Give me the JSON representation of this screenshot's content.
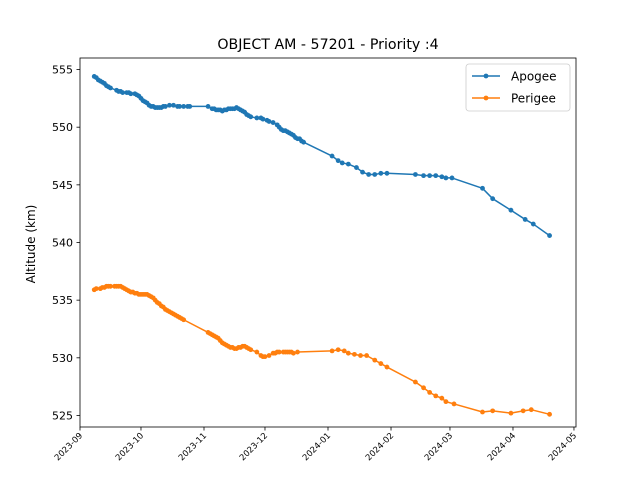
{
  "chart_data": {
    "type": "line",
    "title": "OBJECT AM - 57201 - Priority :4",
    "xlabel": "",
    "ylabel": "Altitude (km)",
    "xlim": [
      "2023-09-01",
      "2024-05-02"
    ],
    "ylim": [
      524.0,
      556.0
    ],
    "x_ticks": [
      "2023-09",
      "2023-10",
      "2023-11",
      "2023-12",
      "2024-01",
      "2024-02",
      "2024-03",
      "2024-04",
      "2024-05"
    ],
    "y_ticks": [
      525,
      530,
      535,
      540,
      545,
      550,
      555
    ],
    "grid": false,
    "legend_position": "top-right",
    "series": [
      {
        "name": "Apogee",
        "color": "#1f77b4",
        "points": [
          [
            "2023-09-08",
            554.4
          ],
          [
            "2023-09-09",
            554.3
          ],
          [
            "2023-09-10",
            554.1
          ],
          [
            "2023-09-11",
            554.0
          ],
          [
            "2023-09-12",
            553.9
          ],
          [
            "2023-09-13",
            553.8
          ],
          [
            "2023-09-14",
            553.6
          ],
          [
            "2023-09-15",
            553.5
          ],
          [
            "2023-09-16",
            553.4
          ],
          [
            "2023-09-19",
            553.2
          ],
          [
            "2023-09-20",
            553.1
          ],
          [
            "2023-09-21",
            553.1
          ],
          [
            "2023-09-22",
            553.0
          ],
          [
            "2023-09-24",
            553.0
          ],
          [
            "2023-09-25",
            553.0
          ],
          [
            "2023-09-26",
            552.9
          ],
          [
            "2023-09-28",
            552.9
          ],
          [
            "2023-09-29",
            552.8
          ],
          [
            "2023-09-30",
            552.7
          ],
          [
            "2023-10-01",
            552.5
          ],
          [
            "2023-10-02",
            552.3
          ],
          [
            "2023-10-03",
            552.2
          ],
          [
            "2023-10-04",
            552.1
          ],
          [
            "2023-10-05",
            551.9
          ],
          [
            "2023-10-06",
            551.8
          ],
          [
            "2023-10-07",
            551.8
          ],
          [
            "2023-10-08",
            551.7
          ],
          [
            "2023-10-09",
            551.7
          ],
          [
            "2023-10-10",
            551.7
          ],
          [
            "2023-10-11",
            551.7
          ],
          [
            "2023-10-12",
            551.8
          ],
          [
            "2023-10-13",
            551.8
          ],
          [
            "2023-10-15",
            551.9
          ],
          [
            "2023-10-17",
            551.9
          ],
          [
            "2023-10-19",
            551.8
          ],
          [
            "2023-10-20",
            551.8
          ],
          [
            "2023-10-22",
            551.8
          ],
          [
            "2023-10-24",
            551.8
          ],
          [
            "2023-10-25",
            551.8
          ],
          [
            "2023-11-03",
            551.8
          ],
          [
            "2023-11-05",
            551.6
          ],
          [
            "2023-11-06",
            551.6
          ],
          [
            "2023-11-07",
            551.5
          ],
          [
            "2023-11-08",
            551.5
          ],
          [
            "2023-11-09",
            551.5
          ],
          [
            "2023-11-10",
            551.4
          ],
          [
            "2023-11-11",
            551.5
          ],
          [
            "2023-11-12",
            551.5
          ],
          [
            "2023-11-13",
            551.6
          ],
          [
            "2023-11-14",
            551.6
          ],
          [
            "2023-11-15",
            551.6
          ],
          [
            "2023-11-16",
            551.6
          ],
          [
            "2023-11-17",
            551.7
          ],
          [
            "2023-11-18",
            551.6
          ],
          [
            "2023-11-19",
            551.5
          ],
          [
            "2023-11-20",
            551.4
          ],
          [
            "2023-11-21",
            551.3
          ],
          [
            "2023-11-22",
            551.1
          ],
          [
            "2023-11-23",
            551.0
          ],
          [
            "2023-11-24",
            550.9
          ],
          [
            "2023-11-27",
            550.8
          ],
          [
            "2023-11-29",
            550.8
          ],
          [
            "2023-11-30",
            550.7
          ],
          [
            "2023-12-02",
            550.6
          ],
          [
            "2023-12-03",
            550.5
          ],
          [
            "2023-12-05",
            550.4
          ],
          [
            "2023-12-07",
            550.2
          ],
          [
            "2023-12-08",
            550.0
          ],
          [
            "2023-12-09",
            549.8
          ],
          [
            "2023-12-10",
            549.7
          ],
          [
            "2023-12-11",
            549.7
          ],
          [
            "2023-12-12",
            549.6
          ],
          [
            "2023-12-13",
            549.5
          ],
          [
            "2023-12-14",
            549.4
          ],
          [
            "2023-12-15",
            549.3
          ],
          [
            "2023-12-16",
            549.1
          ],
          [
            "2023-12-17",
            549.0
          ],
          [
            "2023-12-18",
            549.0
          ],
          [
            "2023-12-19",
            548.8
          ],
          [
            "2023-12-20",
            548.7
          ],
          [
            "2024-01-03",
            547.5
          ],
          [
            "2024-01-06",
            547.1
          ],
          [
            "2024-01-08",
            546.9
          ],
          [
            "2024-01-11",
            546.8
          ],
          [
            "2024-01-15",
            546.5
          ],
          [
            "2024-01-18",
            546.1
          ],
          [
            "2024-01-21",
            545.9
          ],
          [
            "2024-01-24",
            545.9
          ],
          [
            "2024-01-27",
            546.0
          ],
          [
            "2024-01-30",
            546.0
          ],
          [
            "2024-02-13",
            545.9
          ],
          [
            "2024-02-17",
            545.8
          ],
          [
            "2024-02-20",
            545.8
          ],
          [
            "2024-02-23",
            545.8
          ],
          [
            "2024-02-26",
            545.7
          ],
          [
            "2024-02-28",
            545.6
          ],
          [
            "2024-03-02",
            545.6
          ],
          [
            "2024-03-17",
            544.7
          ],
          [
            "2024-03-22",
            543.8
          ],
          [
            "2024-03-31",
            542.8
          ],
          [
            "2024-04-07",
            542.0
          ],
          [
            "2024-04-11",
            541.6
          ],
          [
            "2024-04-19",
            540.6
          ]
        ]
      },
      {
        "name": "Perigee",
        "color": "#ff7f0e",
        "points": [
          [
            "2023-09-08",
            535.9
          ],
          [
            "2023-09-09",
            536.0
          ],
          [
            "2023-09-11",
            536.0
          ],
          [
            "2023-09-12",
            536.1
          ],
          [
            "2023-09-13",
            536.1
          ],
          [
            "2023-09-14",
            536.2
          ],
          [
            "2023-09-15",
            536.2
          ],
          [
            "2023-09-16",
            536.2
          ],
          [
            "2023-09-18",
            536.2
          ],
          [
            "2023-09-19",
            536.2
          ],
          [
            "2023-09-20",
            536.2
          ],
          [
            "2023-09-21",
            536.2
          ],
          [
            "2023-09-22",
            536.1
          ],
          [
            "2023-09-23",
            536.0
          ],
          [
            "2023-09-24",
            535.9
          ],
          [
            "2023-09-25",
            535.8
          ],
          [
            "2023-09-26",
            535.7
          ],
          [
            "2023-09-27",
            535.7
          ],
          [
            "2023-09-28",
            535.6
          ],
          [
            "2023-09-29",
            535.6
          ],
          [
            "2023-09-30",
            535.5
          ],
          [
            "2023-10-01",
            535.5
          ],
          [
            "2023-10-02",
            535.5
          ],
          [
            "2023-10-03",
            535.5
          ],
          [
            "2023-10-04",
            535.5
          ],
          [
            "2023-10-05",
            535.4
          ],
          [
            "2023-10-06",
            535.3
          ],
          [
            "2023-10-07",
            535.2
          ],
          [
            "2023-10-08",
            535.0
          ],
          [
            "2023-10-09",
            534.8
          ],
          [
            "2023-10-10",
            534.7
          ],
          [
            "2023-10-11",
            534.5
          ],
          [
            "2023-10-12",
            534.4
          ],
          [
            "2023-10-13",
            534.2
          ],
          [
            "2023-10-14",
            534.1
          ],
          [
            "2023-10-15",
            534.0
          ],
          [
            "2023-10-16",
            533.9
          ],
          [
            "2023-10-17",
            533.8
          ],
          [
            "2023-10-18",
            533.7
          ],
          [
            "2023-10-19",
            533.6
          ],
          [
            "2023-10-20",
            533.5
          ],
          [
            "2023-10-21",
            533.4
          ],
          [
            "2023-10-22",
            533.3
          ],
          [
            "2023-11-03",
            532.2
          ],
          [
            "2023-11-04",
            532.1
          ],
          [
            "2023-11-05",
            532.0
          ],
          [
            "2023-11-06",
            531.9
          ],
          [
            "2023-11-07",
            531.8
          ],
          [
            "2023-11-08",
            531.7
          ],
          [
            "2023-11-09",
            531.5
          ],
          [
            "2023-11-10",
            531.3
          ],
          [
            "2023-11-11",
            531.2
          ],
          [
            "2023-11-12",
            531.1
          ],
          [
            "2023-11-13",
            531.0
          ],
          [
            "2023-11-14",
            530.9
          ],
          [
            "2023-11-15",
            530.9
          ],
          [
            "2023-11-16",
            530.8
          ],
          [
            "2023-11-17",
            530.8
          ],
          [
            "2023-11-18",
            530.9
          ],
          [
            "2023-11-19",
            530.9
          ],
          [
            "2023-11-20",
            531.0
          ],
          [
            "2023-11-21",
            531.0
          ],
          [
            "2023-11-22",
            530.9
          ],
          [
            "2023-11-23",
            530.8
          ],
          [
            "2023-11-24",
            530.7
          ],
          [
            "2023-11-27",
            530.5
          ],
          [
            "2023-11-29",
            530.2
          ],
          [
            "2023-11-30",
            530.1
          ],
          [
            "2023-12-01",
            530.1
          ],
          [
            "2023-12-03",
            530.2
          ],
          [
            "2023-12-05",
            530.4
          ],
          [
            "2023-12-06",
            530.4
          ],
          [
            "2023-12-07",
            530.5
          ],
          [
            "2023-12-08",
            530.5
          ],
          [
            "2023-12-10",
            530.5
          ],
          [
            "2023-12-11",
            530.5
          ],
          [
            "2023-12-12",
            530.5
          ],
          [
            "2023-12-13",
            530.5
          ],
          [
            "2023-12-14",
            530.5
          ],
          [
            "2023-12-15",
            530.4
          ],
          [
            "2023-12-17",
            530.5
          ],
          [
            "2024-01-03",
            530.6
          ],
          [
            "2024-01-06",
            530.7
          ],
          [
            "2024-01-09",
            530.6
          ],
          [
            "2024-01-11",
            530.4
          ],
          [
            "2024-01-14",
            530.3
          ],
          [
            "2024-01-17",
            530.2
          ],
          [
            "2024-01-20",
            530.2
          ],
          [
            "2024-01-24",
            529.8
          ],
          [
            "2024-01-27",
            529.5
          ],
          [
            "2024-01-30",
            529.2
          ],
          [
            "2024-02-13",
            527.9
          ],
          [
            "2024-02-17",
            527.4
          ],
          [
            "2024-02-20",
            527.0
          ],
          [
            "2024-02-23",
            526.7
          ],
          [
            "2024-02-26",
            526.5
          ],
          [
            "2024-02-28",
            526.2
          ],
          [
            "2024-03-03",
            526.0
          ],
          [
            "2024-03-17",
            525.3
          ],
          [
            "2024-03-22",
            525.4
          ],
          [
            "2024-03-31",
            525.2
          ],
          [
            "2024-04-06",
            525.4
          ],
          [
            "2024-04-10",
            525.5
          ],
          [
            "2024-04-19",
            525.1
          ]
        ]
      }
    ]
  }
}
